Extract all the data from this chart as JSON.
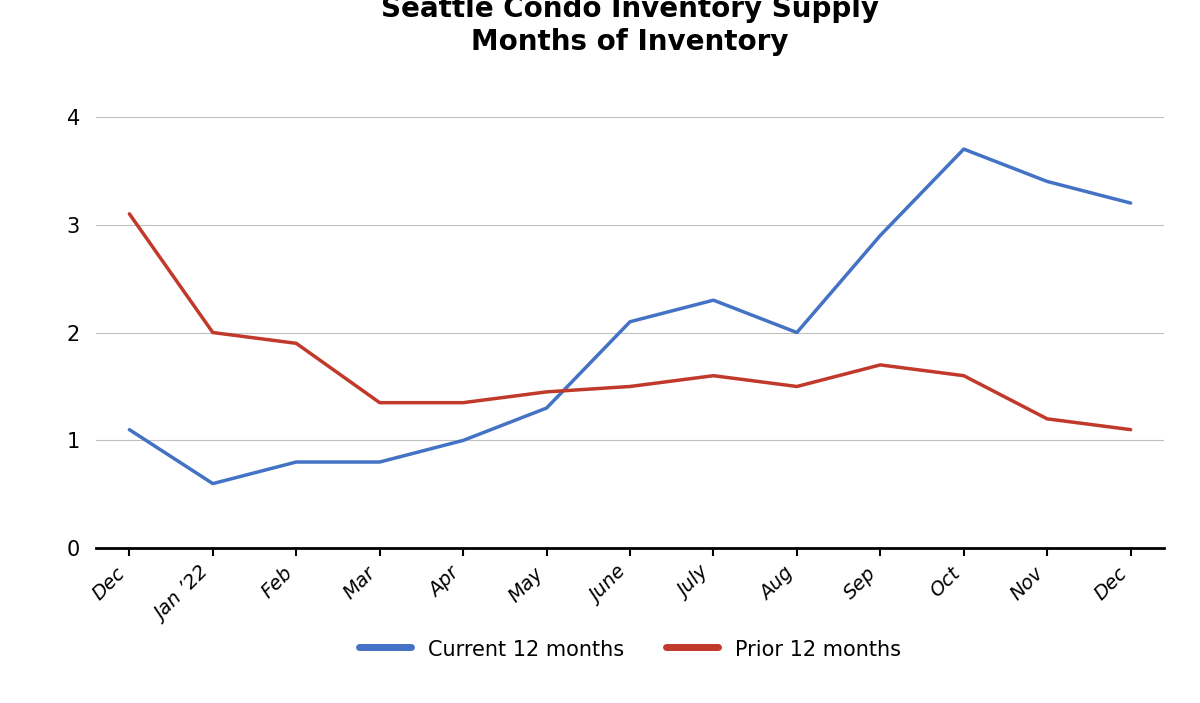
{
  "title": "Seattle Condo Inventory Supply\nMonths of Inventory",
  "x_labels": [
    "Dec",
    "Jan ’22",
    "Feb",
    "Mar",
    "Apr",
    "May",
    "June",
    "July",
    "Aug",
    "Sep",
    "Oct",
    "Nov",
    "Dec"
  ],
  "current_12": [
    1.1,
    0.6,
    0.8,
    0.8,
    1.0,
    1.3,
    2.1,
    2.3,
    2.0,
    2.9,
    3.7,
    3.4,
    3.2
  ],
  "prior_12": [
    3.1,
    2.0,
    1.9,
    1.35,
    1.35,
    1.45,
    1.5,
    1.6,
    1.5,
    1.7,
    1.6,
    1.2,
    1.1
  ],
  "current_color": "#4472C4",
  "prior_color": "#C0392B",
  "current_label": "Current 12 months",
  "prior_label": "Prior 12 months",
  "ylim": [
    0,
    4.3
  ],
  "yticks": [
    0,
    1,
    2,
    3,
    4
  ],
  "line_width": 2.5,
  "title_fontsize": 20,
  "tick_fontsize": 14,
  "legend_fontsize": 15,
  "background_color": "#ffffff",
  "grid_color": "#c0c0c0"
}
